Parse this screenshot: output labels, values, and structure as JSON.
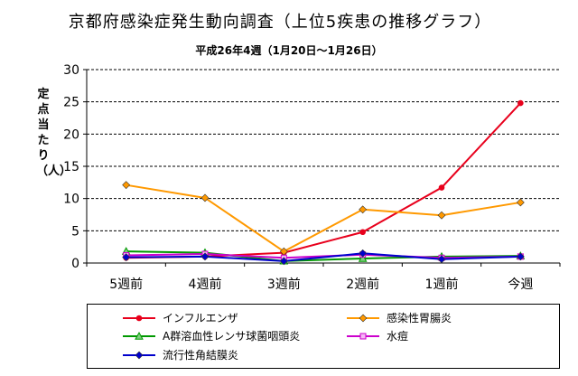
{
  "title": "京都府感染症発生動向調査（上位5疾患の推移グラフ）",
  "subtitle": "平成26年4週（1月20日～1月26日）",
  "chart_data": {
    "type": "line",
    "title": "京都府感染症発生動向調査（上位5疾患の推移グラフ）",
    "subtitle": "平成26年4週（1月20日～1月26日）",
    "ylabel": "定点当たり（人）",
    "xlabel": "",
    "ylim": [
      0,
      30
    ],
    "yticks": [
      0,
      5,
      10,
      15,
      20,
      25,
      30
    ],
    "grid": true,
    "legend_position": "bottom",
    "categories": [
      "5週前",
      "4週前",
      "3週前",
      "2週前",
      "1週前",
      "今週"
    ],
    "series": [
      {
        "name": "インフルエンザ",
        "color": "#e8001c",
        "marker": "circle",
        "values": [
          0.8,
          1.0,
          1.6,
          4.8,
          11.7,
          24.8
        ]
      },
      {
        "name": "感染性胃腸炎",
        "color": "#ff9900",
        "marker": "diamond",
        "values": [
          12.1,
          10.1,
          1.8,
          8.3,
          7.4,
          9.4
        ]
      },
      {
        "name": "A群溶血性レンサ球菌咽頭炎",
        "color": "#009900",
        "marker": "triangle",
        "values": [
          1.8,
          1.6,
          0.3,
          0.7,
          1.0,
          1.1
        ]
      },
      {
        "name": "水痘",
        "color": "#cc00cc",
        "marker": "square",
        "values": [
          1.2,
          1.4,
          0.8,
          1.3,
          0.8,
          1.0
        ]
      },
      {
        "name": "流行性角結膜炎",
        "color": "#0000cc",
        "marker": "diamond",
        "values": [
          0.9,
          1.0,
          0.3,
          1.5,
          0.6,
          1.0
        ]
      }
    ]
  }
}
